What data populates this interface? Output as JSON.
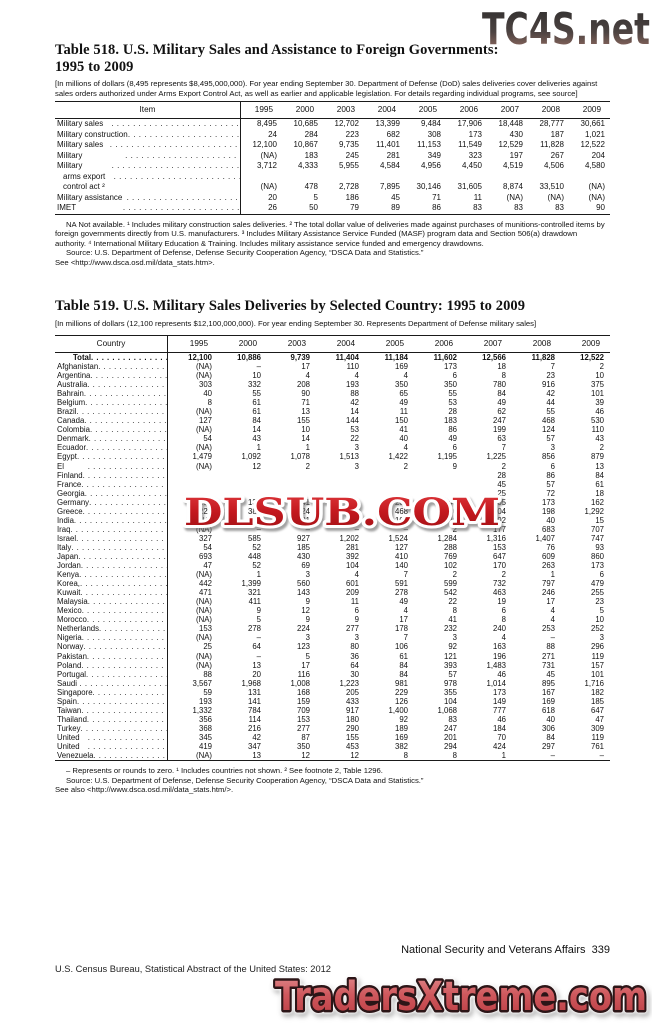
{
  "watermarks": {
    "top": "TC4S.net",
    "middle": "DLSUB.COM",
    "bottom": "TradersXtreme.com",
    "top_color_start": "#2e2d2d",
    "top_color_end": "#a4766a",
    "middle_color": "#c3181e",
    "bottom_color": "#c84a4f"
  },
  "table518": {
    "title_line1": "Table 518. U.S. Military Sales and Assistance to Foreign Governments:",
    "title_line2": "1995 to 2009",
    "note": "[In millions of dollars (8,495 represents $8,495,000,000). For year ending September 30. Department of Defense (DoD) sales deliveries cover deliveries against sales orders authorized under Arms Export Control Act, as well as earlier and applicable legislation. For details regarding individual programs, see source]",
    "col_header": "Item",
    "years": [
      "1995",
      "2000",
      "2003",
      "2004",
      "2005",
      "2006",
      "2007",
      "2008",
      "2009"
    ],
    "rows": [
      {
        "label": "Military sales agreements",
        "values": [
          "8,495",
          "10,685",
          "12,702",
          "13,399",
          "9,484",
          "17,906",
          "18,448",
          "28,777",
          "30,661"
        ]
      },
      {
        "label": "Military construction sales agreements",
        "values": [
          "24",
          "284",
          "223",
          "682",
          "308",
          "173",
          "430",
          "187",
          "1,021"
        ]
      },
      {
        "label": "Military sales deliveries ¹",
        "values": [
          "12,100",
          "10,867",
          "9,735",
          "11,401",
          "11,153",
          "11,549",
          "12,529",
          "11,828",
          "12,522"
        ]
      },
      {
        "label": "Military construction sales deliveries",
        "values": [
          "(NA)",
          "183",
          "245",
          "281",
          "349",
          "323",
          "197",
          "267",
          "204"
        ]
      },
      {
        "label": "Military financing program",
        "values": [
          "3,712",
          "4,333",
          "5,955",
          "4,584",
          "4,956",
          "4,450",
          "4,519",
          "4,506",
          "4,580"
        ]
      },
      {
        "label": "Commercial exports licensed under",
        "label2": "arms export control act ²",
        "values": [
          "(NA)",
          "478",
          "2,728",
          "7,895",
          "30,146",
          "31,605",
          "8,874",
          "33,510",
          "(NA)"
        ]
      },
      {
        "label": "Military assistance program delivery ³",
        "values": [
          "20",
          "5",
          "186",
          "45",
          "71",
          "11",
          "(NA)",
          "(NA)",
          "(NA)"
        ]
      },
      {
        "label": "IMET program/deliveries ⁴",
        "values": [
          "26",
          "50",
          "79",
          "89",
          "86",
          "83",
          "83",
          "83",
          "90"
        ]
      }
    ],
    "footnotes": [
      "NA Not available. ¹ Includes military construction sales deliveries. ² The total dollar value of deliveries made against purchases of munitions-controlled items by foreign governments directly from U.S. manufacturers. ³ Includes Military Assistance Service Funded (MASF) program data and Section 506(a) drawdown authority. ⁴ International Military Education & Training. Includes military assistance service funded and emergency drawdowns.",
      "Source: U.S. Department of Defense, Defense Security Cooperation Agency, “DSCA Data and Statistics.”",
      "See <http://www.dsca.osd.mil/data_stats.htm>."
    ]
  },
  "table519": {
    "title": "Table 519. U.S. Military Sales Deliveries by Selected Country: 1995 to 2009",
    "note": "[In millions of dollars (12,100 represents $12,100,000,000). For year ending September 30. Represents Department of Defense military sales]",
    "col_header": "Country",
    "years": [
      "1995",
      "2000",
      "2003",
      "2004",
      "2005",
      "2006",
      "2007",
      "2008",
      "2009"
    ],
    "rows": [
      {
        "label": "Total ¹",
        "bold": true,
        "indent": true,
        "values": [
          "12,100",
          "10,886",
          "9,739",
          "11,404",
          "11,184",
          "11,602",
          "12,566",
          "11,828",
          "12,522"
        ]
      },
      {
        "label": "Afghanistan",
        "values": [
          "(NA)",
          "–",
          "17",
          "110",
          "169",
          "173",
          "18",
          "7",
          "2"
        ]
      },
      {
        "label": "Argentina",
        "values": [
          "(NA)",
          "10",
          "4",
          "4",
          "4",
          "6",
          "8",
          "23",
          "10"
        ]
      },
      {
        "label": "Australia",
        "values": [
          "303",
          "332",
          "208",
          "193",
          "350",
          "350",
          "780",
          "916",
          "375"
        ]
      },
      {
        "label": "Bahrain",
        "values": [
          "40",
          "55",
          "90",
          "88",
          "65",
          "55",
          "84",
          "42",
          "101"
        ]
      },
      {
        "label": "Belgium",
        "values": [
          "8",
          "61",
          "71",
          "42",
          "49",
          "53",
          "49",
          "44",
          "39"
        ]
      },
      {
        "label": "Brazil",
        "values": [
          "(NA)",
          "61",
          "13",
          "14",
          "11",
          "28",
          "62",
          "55",
          "46"
        ]
      },
      {
        "label": "Canada",
        "values": [
          "127",
          "84",
          "155",
          "144",
          "150",
          "183",
          "247",
          "468",
          "530"
        ]
      },
      {
        "label": "Colombia",
        "values": [
          "(NA)",
          "14",
          "10",
          "53",
          "41",
          "86",
          "199",
          "124",
          "110"
        ]
      },
      {
        "label": "Denmark",
        "values": [
          "54",
          "43",
          "14",
          "22",
          "40",
          "49",
          "63",
          "57",
          "43"
        ]
      },
      {
        "label": "Ecuador",
        "values": [
          "(NA)",
          "1",
          "1",
          "3",
          "4",
          "6",
          "7",
          "3",
          "2"
        ]
      },
      {
        "label": "Egypt",
        "values": [
          "1,479",
          "1,092",
          "1,078",
          "1,513",
          "1,422",
          "1,195",
          "1,225",
          "856",
          "879"
        ]
      },
      {
        "label": "El Salvador",
        "values": [
          "(NA)",
          "12",
          "2",
          "3",
          "2",
          "9",
          "2",
          "6",
          "13"
        ]
      },
      {
        "label": "Finland",
        "values": [
          "",
          "",
          "",
          "",
          "",
          "",
          "28",
          "86",
          "84"
        ]
      },
      {
        "label": "France",
        "values": [
          "",
          "",
          "",
          "",
          "",
          "",
          "45",
          "57",
          "61"
        ]
      },
      {
        "label": "Georgia",
        "values": [
          "",
          "",
          "",
          "",
          "",
          "",
          "25",
          "72",
          "18"
        ]
      },
      {
        "label": "Germany",
        "values": [
          "257",
          "131",
          "241",
          "264",
          "208",
          "149",
          "205",
          "173",
          "162"
        ]
      },
      {
        "label": "Greece",
        "values": [
          "220",
          "389",
          "1,324",
          "1,225",
          "468",
          "180",
          "204",
          "198",
          "1,292"
        ]
      },
      {
        "label": "India",
        "values": [
          "(NA)",
          "–",
          "21",
          "7",
          "100",
          "49",
          "92",
          "40",
          "15"
        ]
      },
      {
        "label": "Iraq",
        "values": [
          "(NA)",
          "–",
          "–",
          "–",
          "–",
          "2",
          "177",
          "683",
          "707"
        ]
      },
      {
        "label": "Israel",
        "values": [
          "327",
          "585",
          "927",
          "1,202",
          "1,524",
          "1,284",
          "1,316",
          "1,407",
          "747"
        ]
      },
      {
        "label": "Italy",
        "values": [
          "54",
          "52",
          "185",
          "281",
          "127",
          "288",
          "153",
          "76",
          "93"
        ]
      },
      {
        "label": "Japan",
        "values": [
          "693",
          "448",
          "430",
          "392",
          "410",
          "769",
          "647",
          "609",
          "860"
        ]
      },
      {
        "label": "Jordan",
        "values": [
          "47",
          "52",
          "69",
          "104",
          "140",
          "102",
          "170",
          "263",
          "173"
        ]
      },
      {
        "label": "Kenya",
        "values": [
          "(NA)",
          "1",
          "3",
          "4",
          "7",
          "2",
          "2",
          "1",
          "6"
        ]
      },
      {
        "label": "Korea, South",
        "values": [
          "442",
          "1,399",
          "560",
          "601",
          "591",
          "599",
          "732",
          "797",
          "479"
        ]
      },
      {
        "label": "Kuwait",
        "values": [
          "471",
          "321",
          "143",
          "209",
          "278",
          "542",
          "463",
          "246",
          "255"
        ]
      },
      {
        "label": "Malaysia",
        "values": [
          "(NA)",
          "411",
          "9",
          "11",
          "49",
          "22",
          "19",
          "17",
          "23"
        ]
      },
      {
        "label": "Mexico",
        "values": [
          "(NA)",
          "9",
          "12",
          "6",
          "4",
          "8",
          "6",
          "4",
          "5"
        ]
      },
      {
        "label": "Morocco",
        "values": [
          "(NA)",
          "5",
          "9",
          "9",
          "17",
          "41",
          "8",
          "4",
          "10"
        ]
      },
      {
        "label": "Netherlands",
        "values": [
          "153",
          "278",
          "224",
          "277",
          "178",
          "232",
          "240",
          "253",
          "252"
        ]
      },
      {
        "label": "Nigeria",
        "values": [
          "(NA)",
          "–",
          "3",
          "3",
          "7",
          "3",
          "4",
          "–",
          "3"
        ]
      },
      {
        "label": "Norway",
        "values": [
          "25",
          "64",
          "123",
          "80",
          "106",
          "92",
          "163",
          "88",
          "296"
        ]
      },
      {
        "label": "Pakistan",
        "values": [
          "(NA)",
          "–",
          "5",
          "36",
          "61",
          "121",
          "196",
          "271",
          "119"
        ]
      },
      {
        "label": "Poland",
        "values": [
          "(NA)",
          "13",
          "17",
          "64",
          "84",
          "393",
          "1,483",
          "731",
          "157"
        ]
      },
      {
        "label": "Portugal",
        "values": [
          "88",
          "20",
          "116",
          "30",
          "84",
          "57",
          "46",
          "45",
          "101"
        ]
      },
      {
        "label": "Saudi Arabia",
        "values": [
          "3,567",
          "1,968",
          "1,008",
          "1,223",
          "981",
          "978",
          "1,014",
          "895",
          "1,716"
        ]
      },
      {
        "label": "Singapore",
        "values": [
          "59",
          "131",
          "168",
          "205",
          "229",
          "355",
          "173",
          "167",
          "182"
        ]
      },
      {
        "label": "Spain",
        "values": [
          "193",
          "141",
          "159",
          "433",
          "126",
          "104",
          "149",
          "169",
          "185"
        ]
      },
      {
        "label": "Taiwan ²",
        "values": [
          "1,332",
          "784",
          "709",
          "917",
          "1,400",
          "1,068",
          "777",
          "618",
          "647"
        ]
      },
      {
        "label": "Thailand",
        "values": [
          "356",
          "114",
          "153",
          "180",
          "92",
          "83",
          "46",
          "40",
          "47"
        ]
      },
      {
        "label": "Turkey",
        "values": [
          "368",
          "216",
          "277",
          "290",
          "189",
          "247",
          "184",
          "306",
          "309"
        ]
      },
      {
        "label": "United Arab Emirates",
        "values": [
          "345",
          "42",
          "87",
          "155",
          "169",
          "201",
          "70",
          "84",
          "119"
        ]
      },
      {
        "label": "United Kingdom",
        "values": [
          "419",
          "347",
          "350",
          "453",
          "382",
          "294",
          "424",
          "297",
          "761"
        ]
      },
      {
        "label": "Venezuela",
        "values": [
          "(NA)",
          "13",
          "12",
          "12",
          "8",
          "8",
          "1",
          "–",
          "–"
        ]
      }
    ],
    "footnotes": [
      "– Represents or rounds to zero. ¹ Includes countries not shown. ² See footnote 2, Table 1296.",
      "Source: U.S. Department of Defense, Defense Security Cooperation Agency, “DSCA Data and Statistics.”",
      "See also <http://www.dsca.osd.mil/data_stats.htm/>."
    ]
  },
  "footer": {
    "right": "National Security and Veterans Affairs  339",
    "left": "U.S. Census Bureau, Statistical Abstract of the United States: 2012"
  }
}
